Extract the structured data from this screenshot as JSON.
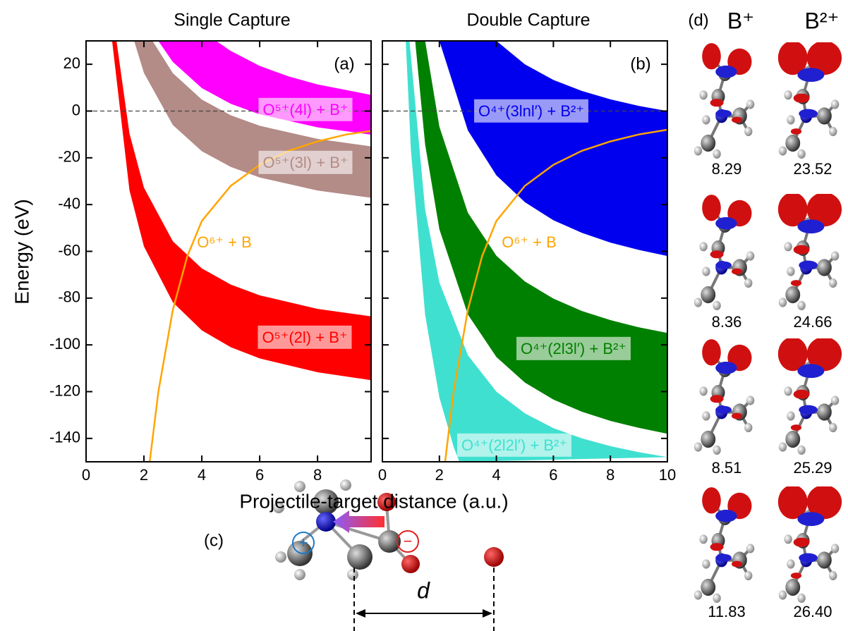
{
  "chart_data": [
    {
      "type": "band",
      "title": "Single Capture",
      "tag": "(a)",
      "xlabel": "Projectile-target distance (a.u.)",
      "ylabel": "Energy (eV)",
      "xlim": [
        0,
        9.85
      ],
      "ylim": [
        -150,
        30
      ],
      "xticks": [
        0,
        2,
        4,
        6,
        8
      ],
      "yticks": [
        20,
        0,
        -20,
        -40,
        -60,
        -80,
        -100,
        -120,
        -140
      ],
      "ytick_labels": true,
      "hline": 0,
      "series": [
        {
          "name": "O⁵⁺(4l) + B⁺",
          "color": "#ff00ff",
          "x_upper": [
            4.5,
            5,
            6,
            7,
            8,
            9.85
          ],
          "upper": [
            29.9,
            25.7,
            19.3,
            14.8,
            11.4,
            6.9
          ],
          "x_lower": [
            2.5,
            3,
            4,
            5,
            6,
            8,
            9.85
          ],
          "lower": [
            29.9,
            21.0,
            9.8,
            3.1,
            -1.4,
            -6.95,
            -10.1
          ]
        },
        {
          "name": "O⁵⁺(3l) + B⁺",
          "color": "#b38b87",
          "x_upper": [
            2.3,
            3,
            4,
            5,
            6,
            8,
            9.85
          ],
          "upper": [
            29.9,
            16.2,
            4.9,
            -1.8,
            -6.3,
            -11.9,
            -15.1
          ],
          "x_lower": [
            1.66,
            2,
            3,
            4,
            5,
            6,
            8,
            9.85
          ],
          "lower": [
            30.0,
            16.3,
            -6.0,
            -17.2,
            -23.9,
            -28.4,
            -34.0,
            -37.1
          ]
        },
        {
          "name": "O⁵⁺(2l) + B⁺",
          "color": "#ff0000",
          "x_upper": [
            1.05,
            1.5,
            2,
            3,
            4,
            5,
            6,
            8,
            9.85
          ],
          "upper": [
            30.0,
            -9.6,
            -32.7,
            -55.7,
            -67.3,
            -74.2,
            -78.8,
            -84.6,
            -87.8
          ],
          "x_lower": [
            0.9,
            1.5,
            2,
            3,
            4,
            5,
            6,
            8,
            9.85
          ],
          "lower": [
            30.0,
            -33.9,
            -57.9,
            -81.8,
            -93.8,
            -101.0,
            -105.8,
            -111.7,
            -115.1
          ]
        }
      ],
      "lines": [
        {
          "name": "O⁶⁺ + B",
          "color": "#ffa500",
          "x": [
            2.2,
            2.5,
            3,
            3.5,
            4,
            5,
            6,
            7,
            8,
            9,
            9.85
          ],
          "values": [
            -150,
            -120,
            -85,
            -62,
            -47,
            -32,
            -23,
            -17,
            -13,
            -10,
            -8.5
          ]
        }
      ]
    },
    {
      "type": "band",
      "title": "Double Capture",
      "tag": "(b)",
      "xlim": [
        0,
        10
      ],
      "ylim": [
        -150,
        30
      ],
      "xticks": [
        0,
        2,
        4,
        6,
        8,
        10
      ],
      "yticks": [
        20,
        0,
        -20,
        -40,
        -60,
        -80,
        -100,
        -120,
        -140
      ],
      "ytick_labels": false,
      "hline": 0,
      "series": [
        {
          "name": "O⁴⁺(3lnl′) + B²⁺",
          "color": "#0000ee",
          "x_upper": [
            4,
            5,
            6,
            7,
            8,
            9,
            10
          ],
          "upper": [
            30,
            20,
            13.3,
            8.6,
            5,
            2.2,
            0
          ],
          "x_lower": [
            2,
            3,
            4,
            5,
            6,
            7,
            8,
            9,
            10
          ],
          "lower": [
            30,
            -8.3,
            -27.5,
            -39,
            -46.7,
            -52.1,
            -56.25,
            -59.4,
            -62
          ]
        },
        {
          "name": "O⁴⁺(2l3l′) + B²⁺",
          "color": "#008000",
          "x_upper": [
            1.5,
            2,
            3,
            4,
            5,
            6,
            7,
            8,
            9,
            10
          ],
          "upper": [
            30,
            -6.7,
            -43.5,
            -61.9,
            -72.9,
            -80.2,
            -85.5,
            -89.4,
            -92.5,
            -94.9
          ],
          "x_lower": [
            1.15,
            1.5,
            2,
            3,
            4,
            5,
            6,
            7,
            8,
            9,
            10
          ],
          "lower": [
            30.0,
            -14.3,
            -50.6,
            -87.0,
            -105.2,
            -116.1,
            -123.4,
            -128.6,
            -132.5,
            -135.5,
            -138.0
          ]
        },
        {
          "name": "O⁴⁺(2l2l′) + B²⁺",
          "color": "#40e0d0",
          "x_upper": [
            0.95,
            1.5,
            2,
            3,
            4,
            5,
            6,
            7,
            8,
            9,
            10
          ],
          "upper": [
            30.0,
            -42.1,
            -73.3,
            -104.4,
            -120.0,
            -129.3,
            -135.6,
            -140.0,
            -143.3,
            -145.9,
            -148.0
          ],
          "x_lower": [
            0.82,
            1,
            1.5,
            2,
            2.5,
            2.7
          ],
          "lower": [
            30.0,
            -16.5,
            -87.1,
            -122.5,
            -143.6,
            -150
          ]
        }
      ],
      "lines": [
        {
          "name": "O⁶⁺ + B",
          "color": "#ffa500",
          "x": [
            2.2,
            2.5,
            3,
            3.5,
            4,
            5,
            6,
            7,
            8,
            9,
            10
          ],
          "values": [
            -150,
            -120,
            -85,
            -62,
            -47,
            -32,
            -23,
            -17,
            -13,
            -10,
            -8
          ]
        }
      ]
    }
  ],
  "panel_c": {
    "tag": "(c)",
    "plus": "+",
    "minus": "−",
    "distance": "d"
  },
  "orbitals": {
    "tag": "(d)",
    "columns": [
      "B⁺",
      "B²⁺"
    ],
    "energies": [
      [
        "8.29",
        "23.52"
      ],
      [
        "8.36",
        "24.66"
      ],
      [
        "8.51",
        "25.29"
      ],
      [
        "11.83",
        "26.40"
      ]
    ]
  }
}
